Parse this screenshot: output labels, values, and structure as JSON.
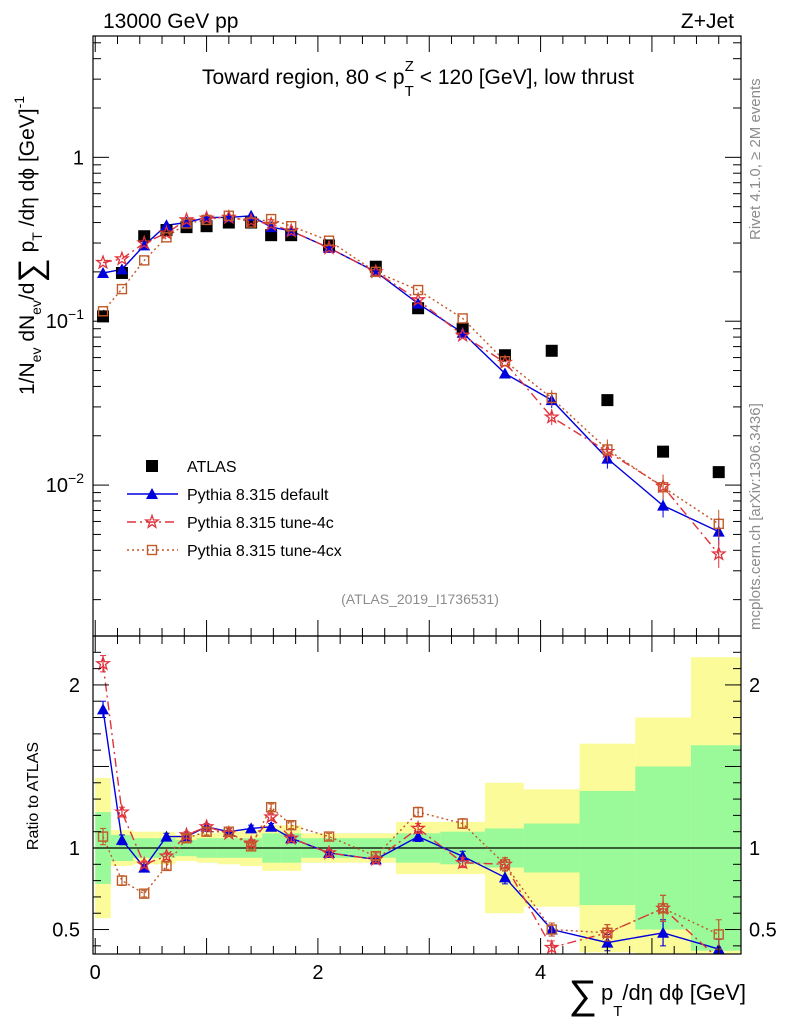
{
  "header": {
    "left": "13000 GeV pp",
    "right": "Z+Jet"
  },
  "side_labels": {
    "rivet": "Rivet 4.1.0, ≥ 2M events",
    "mcplots": "mcplots.cern.ch [arXiv:1306.3436]"
  },
  "watermark": "(ATLAS_2019_I1736531)",
  "chart_data": [
    {
      "type": "scatter",
      "panel": "main",
      "title_parts": {
        "prefix": "Toward region, 80 < p",
        "sub": "T",
        "sup": "Z",
        "suffix": " < 120 [GeV], low thrust"
      },
      "ylabel_parts": [
        "1/N",
        "ev",
        " dN",
        "ev",
        "/d",
        "∑",
        " p",
        "T",
        " /dη dϕ  [GeV]",
        "-1"
      ],
      "yscale": "log",
      "ylim": [
        0.0012,
        5.5
      ],
      "ytick_labels": [
        {
          "value": 1,
          "label": "1"
        },
        {
          "value": 0.1,
          "label": "10",
          "exp": "−1"
        },
        {
          "value": 0.01,
          "label": "10",
          "exp": "−2"
        }
      ],
      "xlim": [
        -0.02,
        5.8
      ],
      "x": [
        0.07,
        0.24,
        0.44,
        0.64,
        0.82,
        1.0,
        1.2,
        1.4,
        1.58,
        1.76,
        2.1,
        2.52,
        2.9,
        3.3,
        3.68,
        4.1,
        4.6,
        5.1,
        5.6
      ],
      "series": [
        {
          "name": "ATLAS",
          "values": [
            0.107,
            0.197,
            0.33,
            0.36,
            0.375,
            0.38,
            0.4,
            0.4,
            0.335,
            0.335,
            0.29,
            0.215,
            0.12,
            0.09,
            0.062,
            0.066,
            0.033,
            0.016,
            0.012
          ]
        },
        {
          "name": "Pythia 8.315 default",
          "values": [
            0.197,
            0.207,
            0.29,
            0.385,
            0.4,
            0.43,
            0.43,
            0.44,
            0.375,
            0.355,
            0.28,
            0.2,
            0.128,
            0.085,
            0.048,
            0.033,
            0.0145,
            0.0075,
            0.0052
          ]
        },
        {
          "name": "Pythia 8.315 tune-4c",
          "values": [
            0.228,
            0.24,
            0.3,
            0.345,
            0.415,
            0.425,
            0.43,
            0.41,
            0.39,
            0.355,
            0.28,
            0.2,
            0.135,
            0.082,
            0.056,
            0.026,
            0.016,
            0.0098,
            0.0038
          ]
        },
        {
          "name": "Pythia 8.315 tune-4cx",
          "values": [
            0.115,
            0.157,
            0.235,
            0.325,
            0.395,
            0.415,
            0.44,
            0.4,
            0.42,
            0.38,
            0.31,
            0.2,
            0.155,
            0.104,
            0.057,
            0.034,
            0.0165,
            0.0097,
            0.0058
          ]
        }
      ],
      "legend_placement": "lower-left"
    },
    {
      "type": "scatter",
      "panel": "ratio",
      "ylabel": "Ratio to ATLAS",
      "ylim": [
        0.35,
        2.3
      ],
      "ytick_labels": [
        {
          "value": 2,
          "label": "2"
        },
        {
          "value": 1,
          "label": "1"
        },
        {
          "value": 0.5,
          "label": "0.5"
        }
      ],
      "xlabel_parts": [
        "∑",
        "p",
        "T",
        "/dη dϕ [GeV]"
      ],
      "xtick_labels": [
        {
          "value": 0,
          "label": "0"
        },
        {
          "value": 2,
          "label": "2"
        },
        {
          "value": 4,
          "label": "4"
        }
      ],
      "bin_edges": [
        0.0,
        0.14,
        0.34,
        0.54,
        0.72,
        0.91,
        1.1,
        1.3,
        1.5,
        1.67,
        1.85,
        2.35,
        2.7,
        3.1,
        3.5,
        3.85,
        4.35,
        4.85,
        5.35,
        5.85
      ],
      "band_inner": [
        0.22,
        0.08,
        0.06,
        0.06,
        0.05,
        0.06,
        0.06,
        0.06,
        0.09,
        0.09,
        0.06,
        0.06,
        0.09,
        0.1,
        0.12,
        0.15,
        0.35,
        0.5,
        0.63
      ],
      "band_outer": [
        0.43,
        0.11,
        0.1,
        0.1,
        0.08,
        0.09,
        0.1,
        0.11,
        0.14,
        0.14,
        0.09,
        0.09,
        0.16,
        0.16,
        0.4,
        0.36,
        0.64,
        0.8,
        1.17
      ],
      "series": [
        {
          "name": "Pythia 8.315 default",
          "values": [
            1.85,
            1.05,
            0.88,
            1.07,
            1.07,
            1.13,
            1.1,
            1.12,
            1.13,
            1.06,
            0.97,
            0.93,
            1.07,
            0.95,
            0.82,
            0.5,
            0.42,
            0.48,
            0.38
          ],
          "errors": [
            0.05,
            0.03,
            0.02,
            0.02,
            0.02,
            0.02,
            0.02,
            0.02,
            0.02,
            0.02,
            0.02,
            0.02,
            0.03,
            0.03,
            0.04,
            0.04,
            0.05,
            0.08,
            0.06
          ]
        },
        {
          "name": "Pythia 8.315 tune-4c",
          "values": [
            2.13,
            1.22,
            0.9,
            0.95,
            1.08,
            1.13,
            1.09,
            1.03,
            1.19,
            1.06,
            0.97,
            0.93,
            1.12,
            0.91,
            0.9,
            0.39,
            0.48,
            0.63,
            0.32
          ],
          "errors": [
            0.05,
            0.03,
            0.02,
            0.02,
            0.02,
            0.02,
            0.02,
            0.02,
            0.02,
            0.02,
            0.02,
            0.02,
            0.03,
            0.03,
            0.04,
            0.04,
            0.05,
            0.08,
            0.06
          ]
        },
        {
          "name": "Pythia 8.315 tune-4cx",
          "values": [
            1.07,
            0.8,
            0.72,
            0.89,
            1.06,
            1.1,
            1.1,
            1.01,
            1.25,
            1.14,
            1.07,
            0.95,
            1.22,
            1.15,
            0.9,
            0.5,
            0.48,
            0.63,
            0.47
          ],
          "errors": [
            0.05,
            0.03,
            0.02,
            0.02,
            0.02,
            0.02,
            0.02,
            0.02,
            0.02,
            0.02,
            0.02,
            0.02,
            0.03,
            0.03,
            0.04,
            0.04,
            0.05,
            0.08,
            0.09
          ]
        }
      ]
    }
  ],
  "styles": {
    "ATLAS": {
      "color": "#000000",
      "marker": "square"
    },
    "Pythia 8.315 default": {
      "color": "#0000dd",
      "marker": "triangle",
      "dash": ""
    },
    "Pythia 8.315 tune-4c": {
      "color": "#e0323c",
      "marker": "star",
      "dash": "9,4,2,4"
    },
    "Pythia 8.315 tune-4cx": {
      "color": "#c05a28",
      "marker": "open-square",
      "dash": "2,3"
    },
    "band_inner_color": "#9afa9a",
    "band_outer_color": "#fbfb9a"
  }
}
